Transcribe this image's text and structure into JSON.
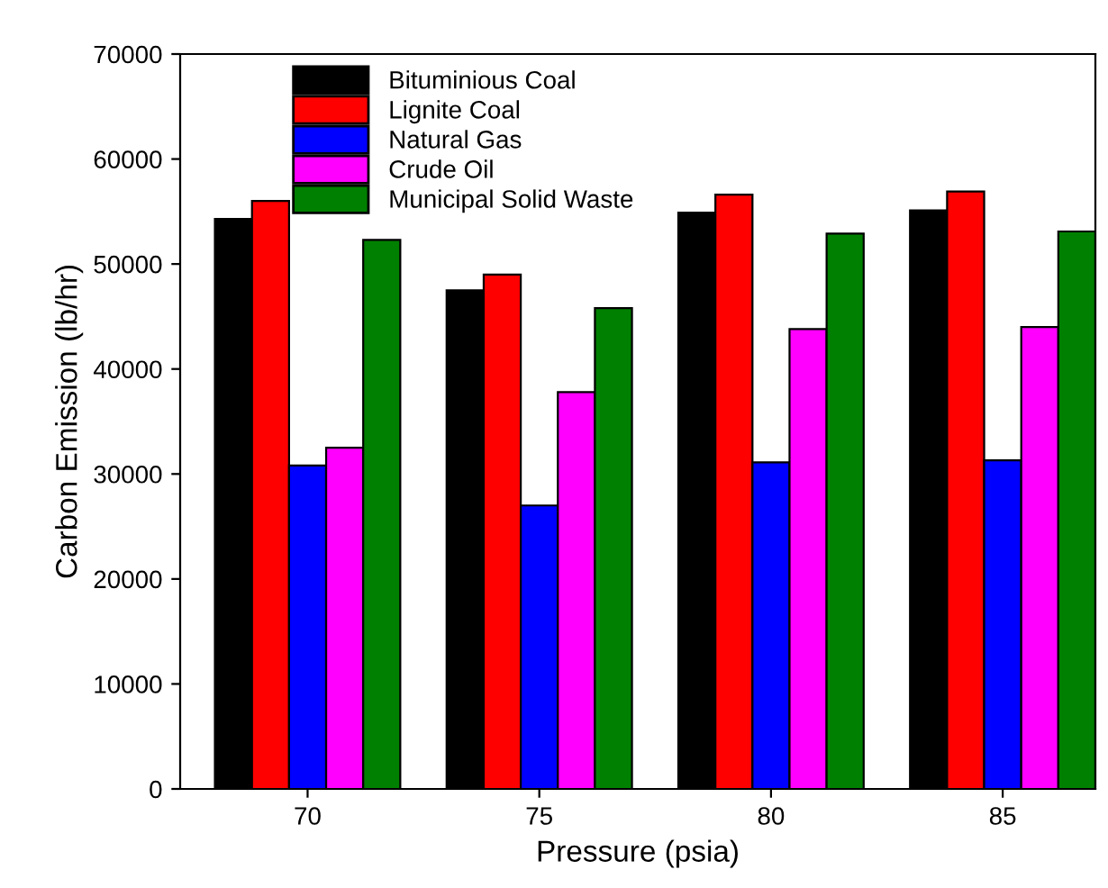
{
  "chart_data": {
    "type": "bar",
    "xlabel": "Pressure (psia)",
    "ylabel": "Carbon Emission (lb/hr)",
    "categories": [
      "70",
      "75",
      "80",
      "85"
    ],
    "series": [
      {
        "name": "Bituminious Coal",
        "color": "#000000",
        "values": [
          54300,
          47500,
          54900,
          55100
        ]
      },
      {
        "name": "Lignite Coal",
        "color": "#ff0000",
        "values": [
          56000,
          49000,
          56600,
          56900
        ]
      },
      {
        "name": "Natural Gas",
        "color": "#0000ff",
        "values": [
          30800,
          27000,
          31100,
          31300
        ]
      },
      {
        "name": "Crude Oil",
        "color": "#ff00ff",
        "values": [
          32500,
          37800,
          43800,
          44000
        ]
      },
      {
        "name": "Municipal Solid Waste",
        "color": "#008000",
        "values": [
          52300,
          45800,
          52900,
          53100
        ]
      }
    ],
    "ylim": [
      0,
      70000
    ],
    "yticks": [
      0,
      10000,
      20000,
      30000,
      40000,
      50000,
      60000,
      70000
    ],
    "grid": false,
    "legend": "top left"
  }
}
